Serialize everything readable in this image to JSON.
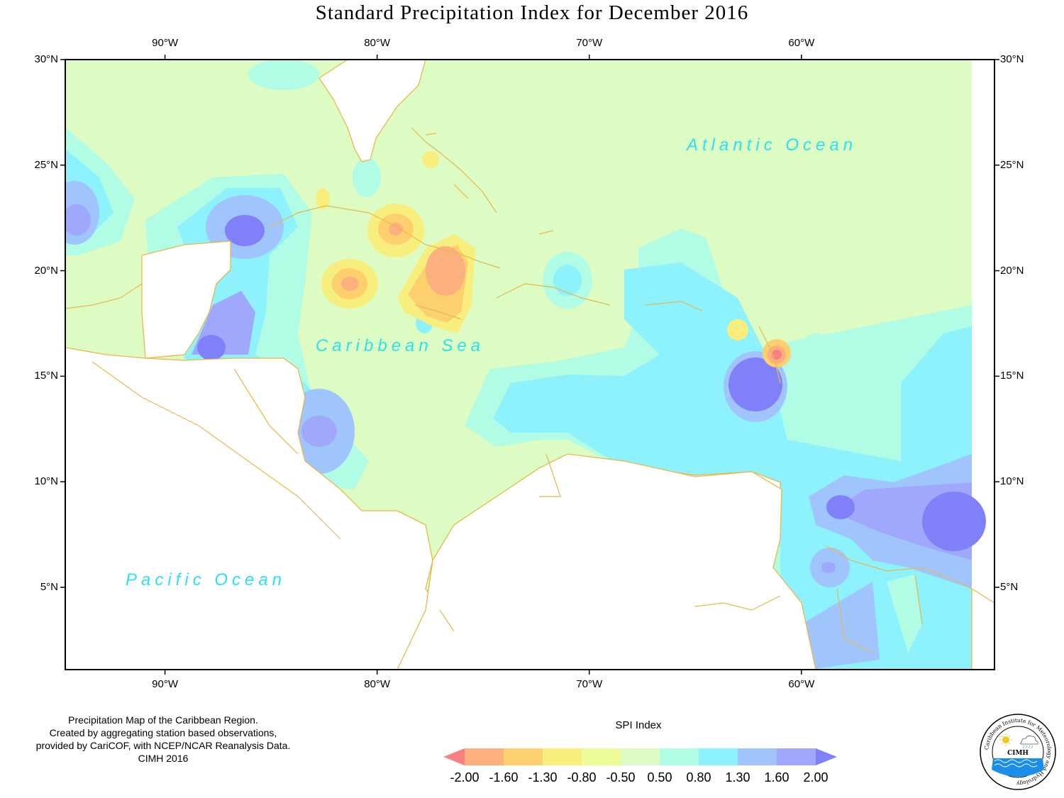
{
  "title": "Standard Precipitation Index for December 2016",
  "map": {
    "lon_ticks": [
      "90°W",
      "80°W",
      "70°W",
      "60°W"
    ],
    "lat_ticks": [
      "30°N",
      "25°N",
      "20°N",
      "15°N",
      "10°N",
      "5°N"
    ],
    "lon_range": [
      -94.7,
      -50.9
    ],
    "lat_range": [
      1.1,
      30
    ],
    "ocean_labels": {
      "atlantic": "Atlantic Ocean",
      "caribbean": "Caribbean Sea",
      "pacific": "Pacific Ocean"
    },
    "land_color": "#ffffff",
    "coast_color": "#e8b84a",
    "neutral_fill": "#dcfcc4"
  },
  "credit": [
    "Precipitation Map of the Caribbean Region.",
    "Created by aggregating station based observations,",
    "provided by CariCOF, with NCEP/NCAR Reanalysis Data.",
    "CIMH 2016"
  ],
  "legend": {
    "title": "SPI Index",
    "labels": [
      "-2.00",
      "-1.60",
      "-1.30",
      "-0.80",
      "-0.50",
      "0.50",
      "0.80",
      "1.30",
      "1.60",
      "2.00"
    ],
    "colors": [
      "#f88080",
      "#fbb07e",
      "#fcd06e",
      "#f8ee7e",
      "#eefc9a",
      "#dcfcc4",
      "#b0fce4",
      "#8ef2fc",
      "#a0c4fc",
      "#a0a8fc",
      "#8080f8"
    ]
  },
  "logo": {
    "ring_text": "Caribbean Institute for Meteorology and Hydrology",
    "acronym": "CIMH"
  }
}
